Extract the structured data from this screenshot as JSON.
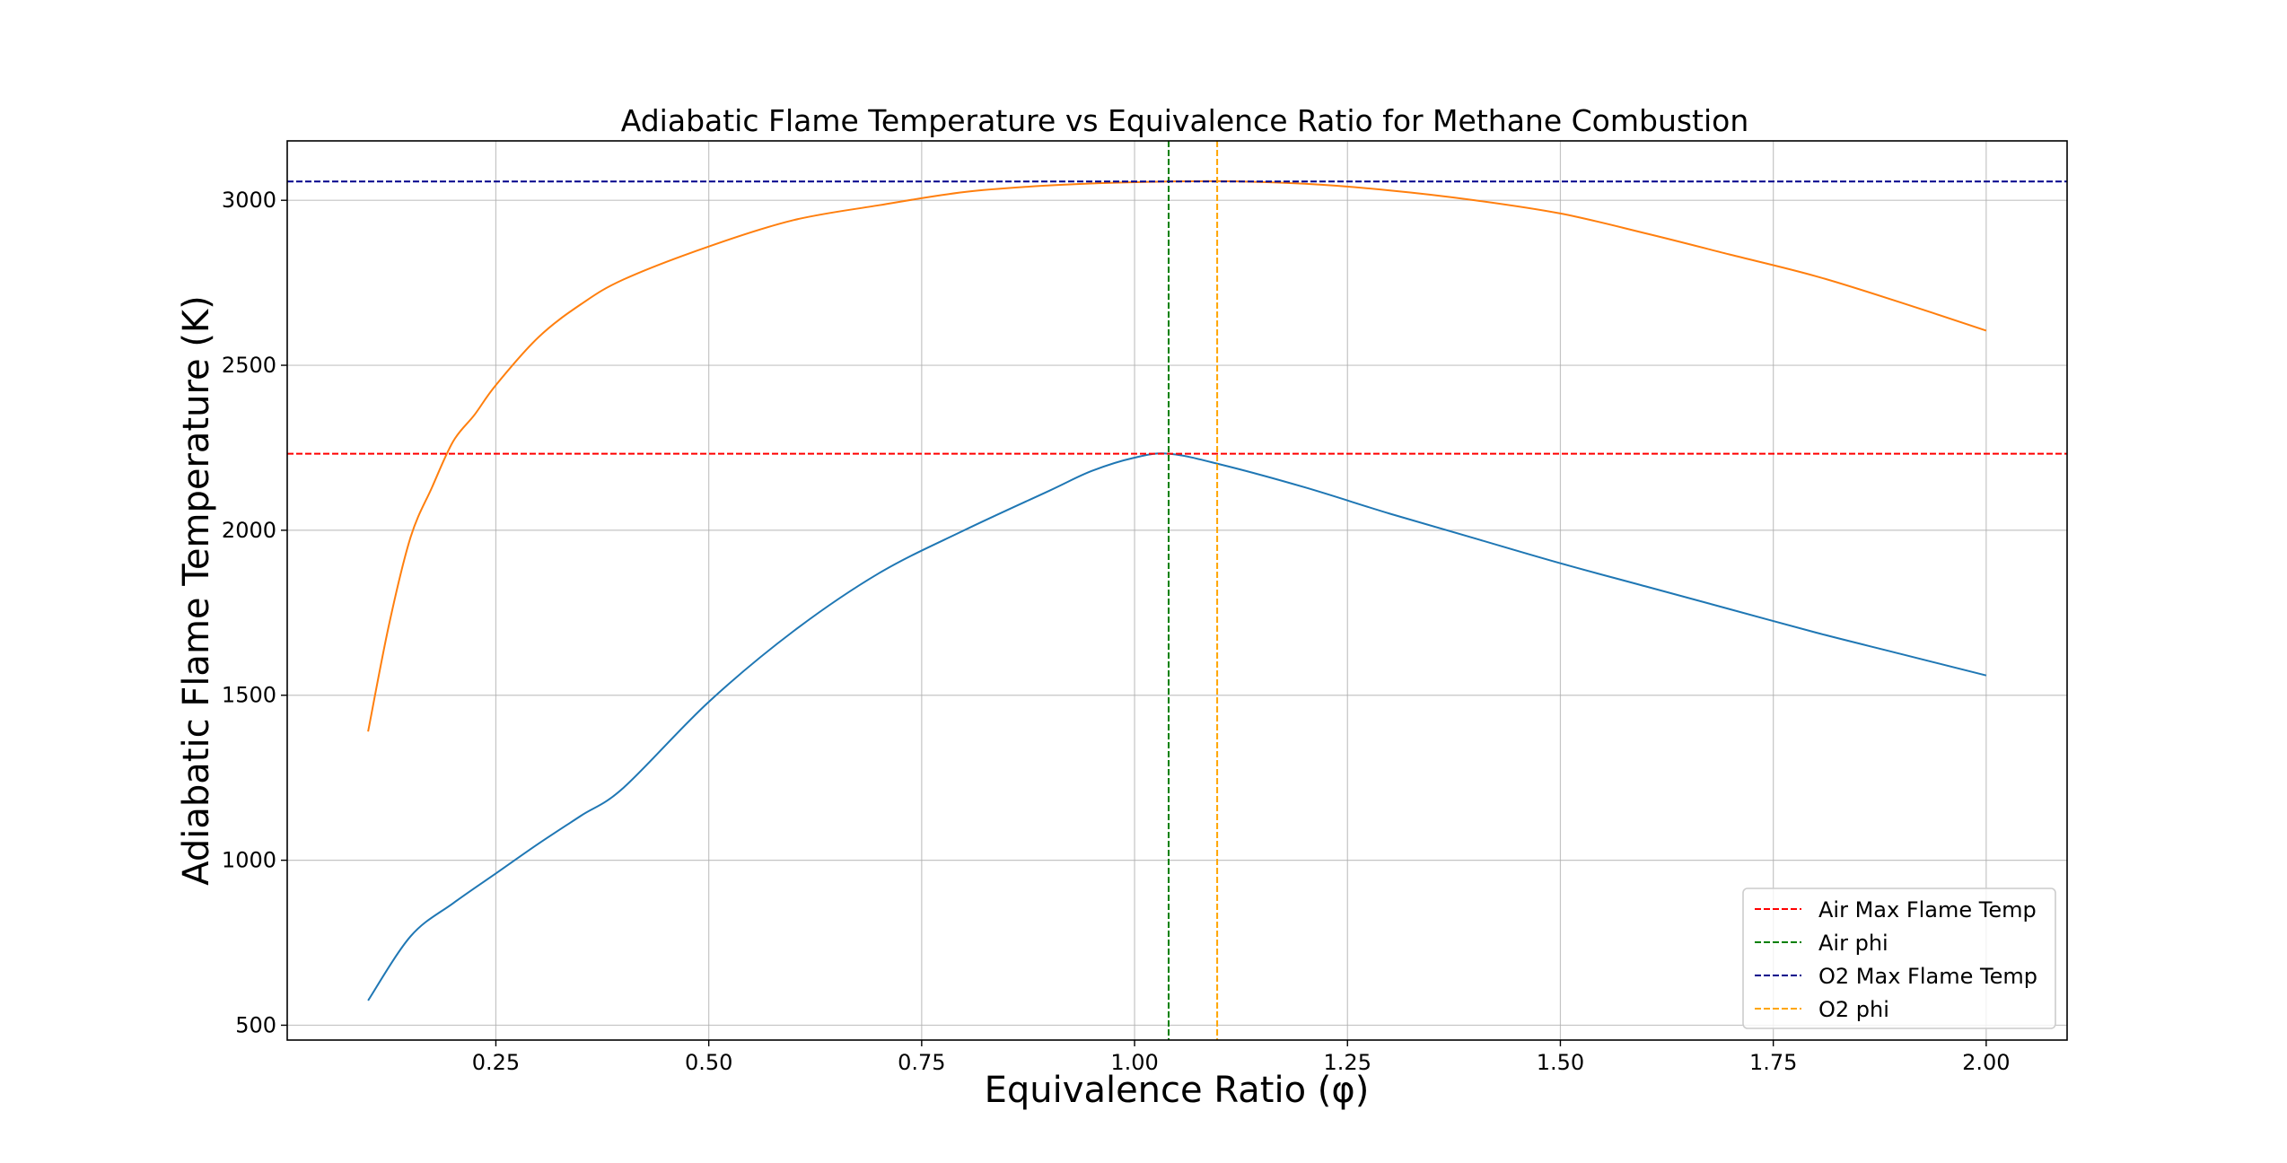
{
  "chart_data": {
    "type": "line",
    "title": "Adiabatic Flame Temperature vs Equivalence Ratio for Methane Combustion",
    "xlabel": "Equivalence Ratio (φ)",
    "ylabel": "Adiabatic Flame Temperature (K)",
    "xlim": [
      0.005,
      2.095
    ],
    "ylim": [
      455,
      3180
    ],
    "grid": true,
    "legend_position": "lower-right",
    "x_ticks": [
      0.25,
      0.5,
      0.75,
      1.0,
      1.25,
      1.5,
      1.75,
      2.0
    ],
    "x_tick_labels": [
      "0.25",
      "0.50",
      "0.75",
      "1.00",
      "1.25",
      "1.50",
      "1.75",
      "2.00"
    ],
    "y_ticks": [
      500,
      1000,
      1500,
      2000,
      2500,
      3000
    ],
    "y_tick_labels": [
      "500",
      "1000",
      "1500",
      "2000",
      "2500",
      "3000"
    ],
    "series": [
      {
        "color": "#1f77b4",
        "x": [
          0.1,
          0.15,
          0.2,
          0.25,
          0.3,
          0.35,
          0.4,
          0.5,
          0.6,
          0.7,
          0.8,
          0.9,
          0.95,
          1.0,
          1.04,
          1.1,
          1.2,
          1.3,
          1.4,
          1.5,
          1.6,
          1.7,
          1.8,
          1.9,
          2.0
        ],
        "y": [
          575,
          770,
          870,
          960,
          1050,
          1135,
          1220,
          1480,
          1695,
          1870,
          2000,
          2120,
          2180,
          2220,
          2232,
          2200,
          2130,
          2050,
          1975,
          1900,
          1830,
          1760,
          1690,
          1625,
          1560
        ]
      },
      {
        "color": "#ff7f0e",
        "x": [
          0.1,
          0.125,
          0.15,
          0.175,
          0.2,
          0.225,
          0.25,
          0.3,
          0.35,
          0.4,
          0.5,
          0.6,
          0.7,
          0.8,
          0.9,
          1.0,
          1.1,
          1.2,
          1.3,
          1.4,
          1.5,
          1.6,
          1.7,
          1.8,
          1.9,
          2.0
        ],
        "y": [
          1390,
          1720,
          1980,
          2130,
          2270,
          2350,
          2440,
          2585,
          2685,
          2760,
          2860,
          2940,
          2985,
          3025,
          3045,
          3055,
          3058,
          3050,
          3030,
          3000,
          2960,
          2900,
          2835,
          2770,
          2690,
          2605
        ]
      }
    ],
    "reference_lines": [
      {
        "name": "Air Max Flame Temp",
        "orientation": "horizontal",
        "value": 2232,
        "color": "#ff0000"
      },
      {
        "name": "Air phi",
        "orientation": "vertical",
        "value": 1.04,
        "color": "#008000"
      },
      {
        "name": "O2 Max Flame Temp",
        "orientation": "horizontal",
        "value": 3057,
        "color": "#00008b"
      },
      {
        "name": "O2 phi",
        "orientation": "vertical",
        "value": 1.097,
        "color": "#ffa500"
      }
    ]
  }
}
